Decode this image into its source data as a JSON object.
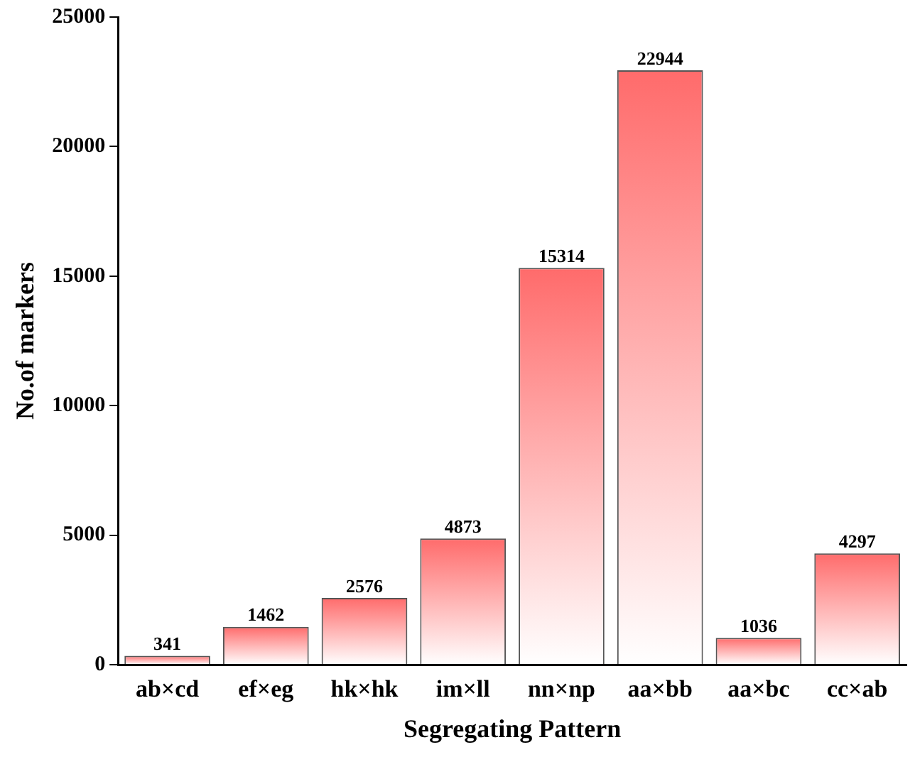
{
  "chart_data": {
    "type": "bar",
    "xlabel": "Segregating Pattern",
    "ylabel": "No.of markers",
    "categories": [
      "ab×cd",
      "ef×eg",
      "hk×hk",
      "im×ll",
      "nn×np",
      "aa×bb",
      "aa×bc",
      "cc×ab"
    ],
    "values": [
      341,
      1462,
      2576,
      4873,
      15314,
      22944,
      1036,
      4297
    ],
    "color": "#ff6b6b",
    "ylim": [
      0,
      25000
    ],
    "yticks": [
      0,
      5000,
      10000,
      15000,
      20000,
      25000
    ],
    "grid": false,
    "data_labels": true
  }
}
